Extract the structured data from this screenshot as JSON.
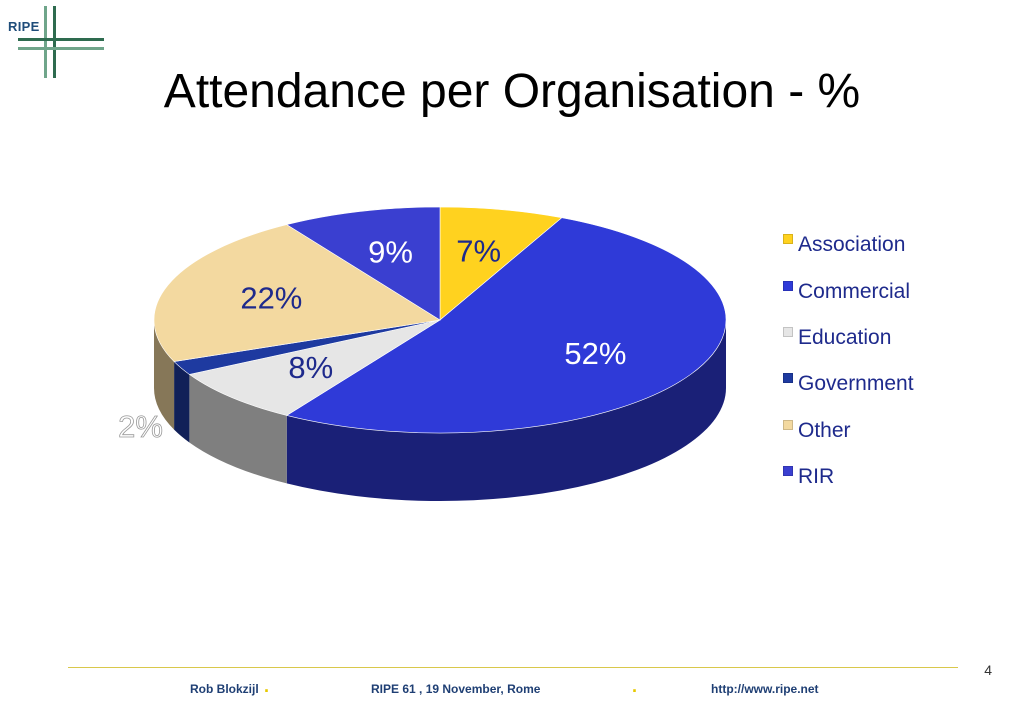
{
  "logo": {
    "text": "RIPE"
  },
  "slide": {
    "title": "Attendance per Organisation - %",
    "page_number": "4"
  },
  "footer": {
    "author": "Rob Blokzijl",
    "event": "RIPE 61 ,  19 November, Rome",
    "url": "http://www.ripe.net",
    "separator": "."
  },
  "colors": {
    "accent": "#d9c84b",
    "text_blue": "#1e2a8c",
    "logo_green": "#2e6b4f"
  },
  "chart_data": {
    "type": "pie",
    "style": "3d",
    "legend_position": "right",
    "slices": [
      {
        "label": "Association",
        "value": 7,
        "value_label": "7%",
        "color": "#ffd21f"
      },
      {
        "label": "Commercial",
        "value": 52,
        "value_label": "52%",
        "color": "#2f3ad8"
      },
      {
        "label": "Education",
        "value": 8,
        "value_label": "8%",
        "color": "#e6e6e6"
      },
      {
        "label": "Government",
        "value": 2,
        "value_label": "2%",
        "color": "#1e3aa0"
      },
      {
        "label": "Other",
        "value": 22,
        "value_label": "22%",
        "color": "#f3d9a0"
      },
      {
        "label": "RIR",
        "value": 9,
        "value_label": "9%",
        "color": "#3a3fd0"
      }
    ],
    "legend": [
      "Association",
      "Commercial",
      "Education",
      "Government",
      "Other",
      "RIR"
    ]
  }
}
